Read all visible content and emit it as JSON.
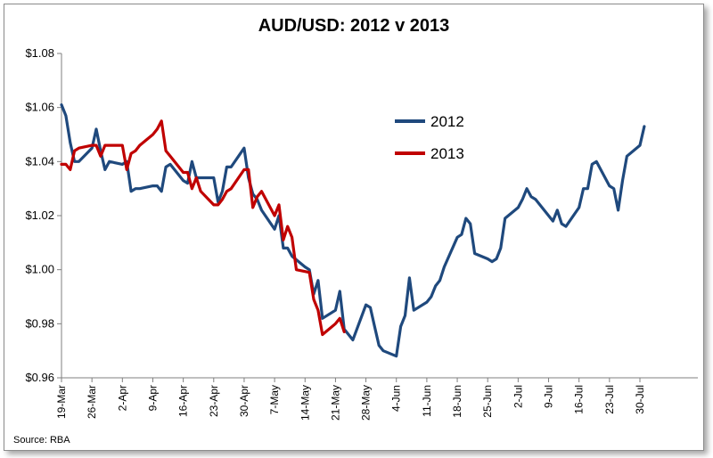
{
  "chart_data": {
    "type": "line",
    "title": "AUD/USD: 2012 v 2013",
    "source": "Source: RBA",
    "xlabel": "",
    "ylabel": "",
    "ylim": [
      0.96,
      1.08
    ],
    "yticks": [
      {
        "value": 1.08,
        "label": "$1.08"
      },
      {
        "value": 1.06,
        "label": "$1.06"
      },
      {
        "value": 1.04,
        "label": "$1.04"
      },
      {
        "value": 1.02,
        "label": "$1.02"
      },
      {
        "value": 1.0,
        "label": "$1.00"
      },
      {
        "value": 0.98,
        "label": "$0.98"
      },
      {
        "value": 0.96,
        "label": "$0.96"
      }
    ],
    "xlim": [
      0,
      133
    ],
    "xticks": [
      {
        "value": 0,
        "label": "19-Mar"
      },
      {
        "value": 7,
        "label": "26-Mar"
      },
      {
        "value": 14,
        "label": "2-Apr"
      },
      {
        "value": 21,
        "label": "9-Apr"
      },
      {
        "value": 28,
        "label": "16-Apr"
      },
      {
        "value": 35,
        "label": "23-Apr"
      },
      {
        "value": 42,
        "label": "30-Apr"
      },
      {
        "value": 49,
        "label": "7-May"
      },
      {
        "value": 56,
        "label": "14-May"
      },
      {
        "value": 63,
        "label": "21-May"
      },
      {
        "value": 70,
        "label": "28-May"
      },
      {
        "value": 77,
        "label": "4-Jun"
      },
      {
        "value": 84,
        "label": "11-Jun"
      },
      {
        "value": 91,
        "label": "18-Jun"
      },
      {
        "value": 98,
        "label": "25-Jun"
      },
      {
        "value": 105,
        "label": "2-Jul"
      },
      {
        "value": 112,
        "label": "9-Jul"
      },
      {
        "value": 119,
        "label": "16-Jul"
      },
      {
        "value": 126,
        "label": "23-Jul"
      },
      {
        "value": 133,
        "label": "30-Jul"
      }
    ],
    "grid": false,
    "legend_position": "upper-middle",
    "series": [
      {
        "name": "2012",
        "color": "#1f497d",
        "points": [
          [
            0,
            1.061
          ],
          [
            1,
            1.057
          ],
          [
            2,
            1.047
          ],
          [
            3,
            1.04
          ],
          [
            4,
            1.04
          ],
          [
            7,
            1.045
          ],
          [
            8,
            1.052
          ],
          [
            9,
            1.044
          ],
          [
            10,
            1.037
          ],
          [
            11,
            1.04
          ],
          [
            14,
            1.039
          ],
          [
            15,
            1.04
          ],
          [
            16,
            1.029
          ],
          [
            17,
            1.03
          ],
          [
            18,
            1.03
          ],
          [
            21,
            1.031
          ],
          [
            22,
            1.031
          ],
          [
            23,
            1.029
          ],
          [
            24,
            1.038
          ],
          [
            25,
            1.039
          ],
          [
            28,
            1.033
          ],
          [
            29,
            1.032
          ],
          [
            30,
            1.04
          ],
          [
            31,
            1.034
          ],
          [
            32,
            1.034
          ],
          [
            35,
            1.034
          ],
          [
            36,
            1.025
          ],
          [
            37,
            1.029
          ],
          [
            38,
            1.038
          ],
          [
            39,
            1.038
          ],
          [
            42,
            1.045
          ],
          [
            43,
            1.034
          ],
          [
            44,
            1.028
          ],
          [
            45,
            1.026
          ],
          [
            46,
            1.022
          ],
          [
            49,
            1.015
          ],
          [
            50,
            1.02
          ],
          [
            51,
            1.008
          ],
          [
            52,
            1.008
          ],
          [
            53,
            1.005
          ],
          [
            56,
            1.001
          ],
          [
            57,
            1.0
          ],
          [
            58,
            0.991
          ],
          [
            59,
            0.996
          ],
          [
            60,
            0.982
          ],
          [
            63,
            0.985
          ],
          [
            64,
            0.992
          ],
          [
            65,
            0.978
          ],
          [
            66,
            0.976
          ],
          [
            67,
            0.974
          ],
          [
            70,
            0.987
          ],
          [
            71,
            0.986
          ],
          [
            72,
            0.979
          ],
          [
            73,
            0.972
          ],
          [
            74,
            0.97
          ],
          [
            77,
            0.968
          ],
          [
            78,
            0.979
          ],
          [
            79,
            0.983
          ],
          [
            80,
            0.997
          ],
          [
            81,
            0.985
          ],
          [
            84,
            0.988
          ],
          [
            85,
            0.99
          ],
          [
            86,
            0.994
          ],
          [
            87,
            0.996
          ],
          [
            88,
            1.001
          ],
          [
            91,
            1.012
          ],
          [
            92,
            1.013
          ],
          [
            93,
            1.019
          ],
          [
            94,
            1.017
          ],
          [
            95,
            1.006
          ],
          [
            98,
            1.004
          ],
          [
            99,
            1.003
          ],
          [
            100,
            1.004
          ],
          [
            101,
            1.008
          ],
          [
            102,
            1.019
          ],
          [
            105,
            1.023
          ],
          [
            106,
            1.026
          ],
          [
            107,
            1.03
          ],
          [
            108,
            1.027
          ],
          [
            109,
            1.026
          ],
          [
            112,
            1.02
          ],
          [
            113,
            1.018
          ],
          [
            114,
            1.022
          ],
          [
            115,
            1.017
          ],
          [
            116,
            1.016
          ],
          [
            119,
            1.023
          ],
          [
            120,
            1.03
          ],
          [
            121,
            1.03
          ],
          [
            122,
            1.039
          ],
          [
            123,
            1.04
          ],
          [
            126,
            1.031
          ],
          [
            127,
            1.03
          ],
          [
            128,
            1.022
          ],
          [
            129,
            1.033
          ],
          [
            130,
            1.042
          ],
          [
            133,
            1.046
          ],
          [
            134,
            1.053
          ]
        ]
      },
      {
        "name": "2013",
        "color": "#c00000",
        "points": [
          [
            0,
            1.039
          ],
          [
            1,
            1.039
          ],
          [
            2,
            1.037
          ],
          [
            3,
            1.044
          ],
          [
            4,
            1.045
          ],
          [
            7,
            1.046
          ],
          [
            8,
            1.046
          ],
          [
            9,
            1.042
          ],
          [
            10,
            1.046
          ],
          [
            11,
            1.046
          ],
          [
            14,
            1.046
          ],
          [
            15,
            1.037
          ],
          [
            16,
            1.043
          ],
          [
            17,
            1.044
          ],
          [
            18,
            1.046
          ],
          [
            21,
            1.05
          ],
          [
            22,
            1.052
          ],
          [
            23,
            1.055
          ],
          [
            24,
            1.044
          ],
          [
            25,
            1.042
          ],
          [
            28,
            1.036
          ],
          [
            29,
            1.036
          ],
          [
            30,
            1.03
          ],
          [
            31,
            1.034
          ],
          [
            32,
            1.029
          ],
          [
            35,
            1.024
          ],
          [
            36,
            1.024
          ],
          [
            37,
            1.026
          ],
          [
            38,
            1.029
          ],
          [
            39,
            1.03
          ],
          [
            42,
            1.037
          ],
          [
            43,
            1.037
          ],
          [
            44,
            1.023
          ],
          [
            45,
            1.027
          ],
          [
            46,
            1.029
          ],
          [
            49,
            1.02
          ],
          [
            50,
            1.024
          ],
          [
            51,
            1.011
          ],
          [
            52,
            1.016
          ],
          [
            53,
            1.012
          ],
          [
            54,
            1.0
          ],
          [
            57,
            0.999
          ],
          [
            58,
            0.989
          ],
          [
            59,
            0.985
          ],
          [
            60,
            0.976
          ],
          [
            63,
            0.98
          ],
          [
            64,
            0.982
          ],
          [
            65,
            0.977
          ]
        ]
      }
    ]
  }
}
